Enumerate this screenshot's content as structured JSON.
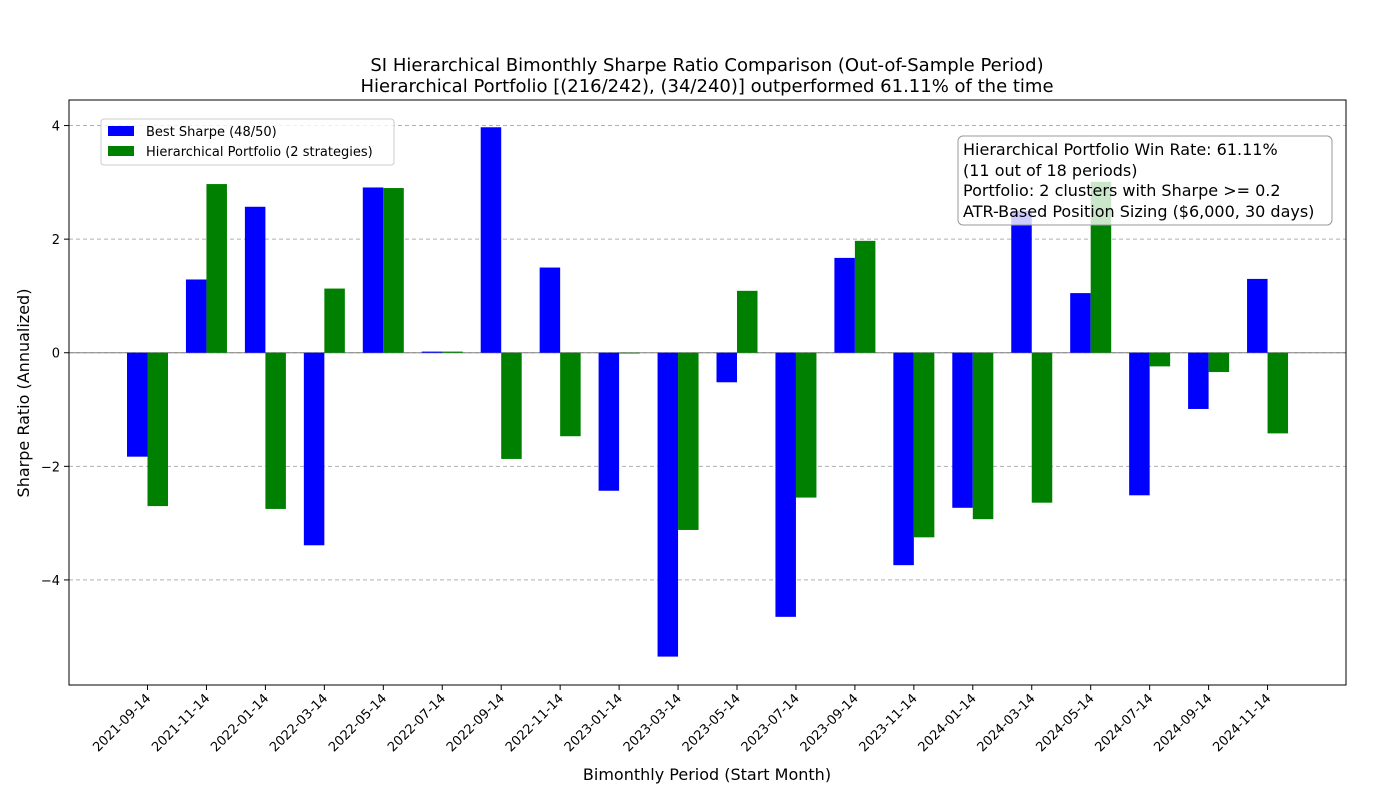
{
  "chart_data": {
    "type": "bar",
    "title": "SI Hierarchical Bimonthly Sharpe Ratio Comparison (Out-of-Sample Period)",
    "subtitle": "Hierarchical Portfolio [(216/242), (34/240)] outperformed 61.11% of the time",
    "xlabel": "Bimonthly Period (Start Month)",
    "ylabel": "Sharpe Ratio (Annualized)",
    "ylim": [
      -5.85,
      4.45
    ],
    "yticks": [
      -4,
      -2,
      0,
      2,
      4
    ],
    "grid": "horizontal dashed",
    "legend_position": "top-left",
    "categories": [
      "2021-09-14",
      "2021-11-14",
      "2022-01-14",
      "2022-03-14",
      "2022-05-14",
      "2022-07-14",
      "2022-09-14",
      "2022-11-14",
      "2023-01-14",
      "2023-03-14",
      "2023-05-14",
      "2023-07-14",
      "2023-09-14",
      "2023-11-14",
      "2024-01-14",
      "2024-03-14",
      "2024-05-14",
      "2024-07-14",
      "2024-09-14",
      "2024-11-14"
    ],
    "series": [
      {
        "name": "Best Sharpe (48/50)",
        "color": "#0000ff",
        "values": [
          -1.83,
          1.29,
          2.57,
          -3.39,
          2.91,
          0.02,
          3.97,
          1.5,
          -2.43,
          -5.35,
          -0.52,
          -4.65,
          1.67,
          -3.74,
          -2.73,
          2.5,
          1.05,
          -2.51,
          -0.99,
          1.3
        ]
      },
      {
        "name": "Hierarchical Portfolio (2 strategies)",
        "color": "#008000",
        "values": [
          -2.7,
          2.97,
          -2.75,
          1.13,
          2.9,
          0.02,
          -1.87,
          -1.47,
          0.0,
          -3.12,
          1.09,
          -2.55,
          1.97,
          -3.25,
          -2.93,
          -2.64,
          3.01,
          -0.24,
          -0.34,
          -1.42
        ]
      }
    ],
    "info_box": {
      "position": "top-right",
      "lines": [
        "Hierarchical Portfolio Win Rate: 61.11%",
        "(11 out of 18 periods)",
        "Portfolio: 2 clusters with Sharpe >= 0.2",
        "ATR-Based Position Sizing ($6,000, 30 days)"
      ]
    }
  }
}
